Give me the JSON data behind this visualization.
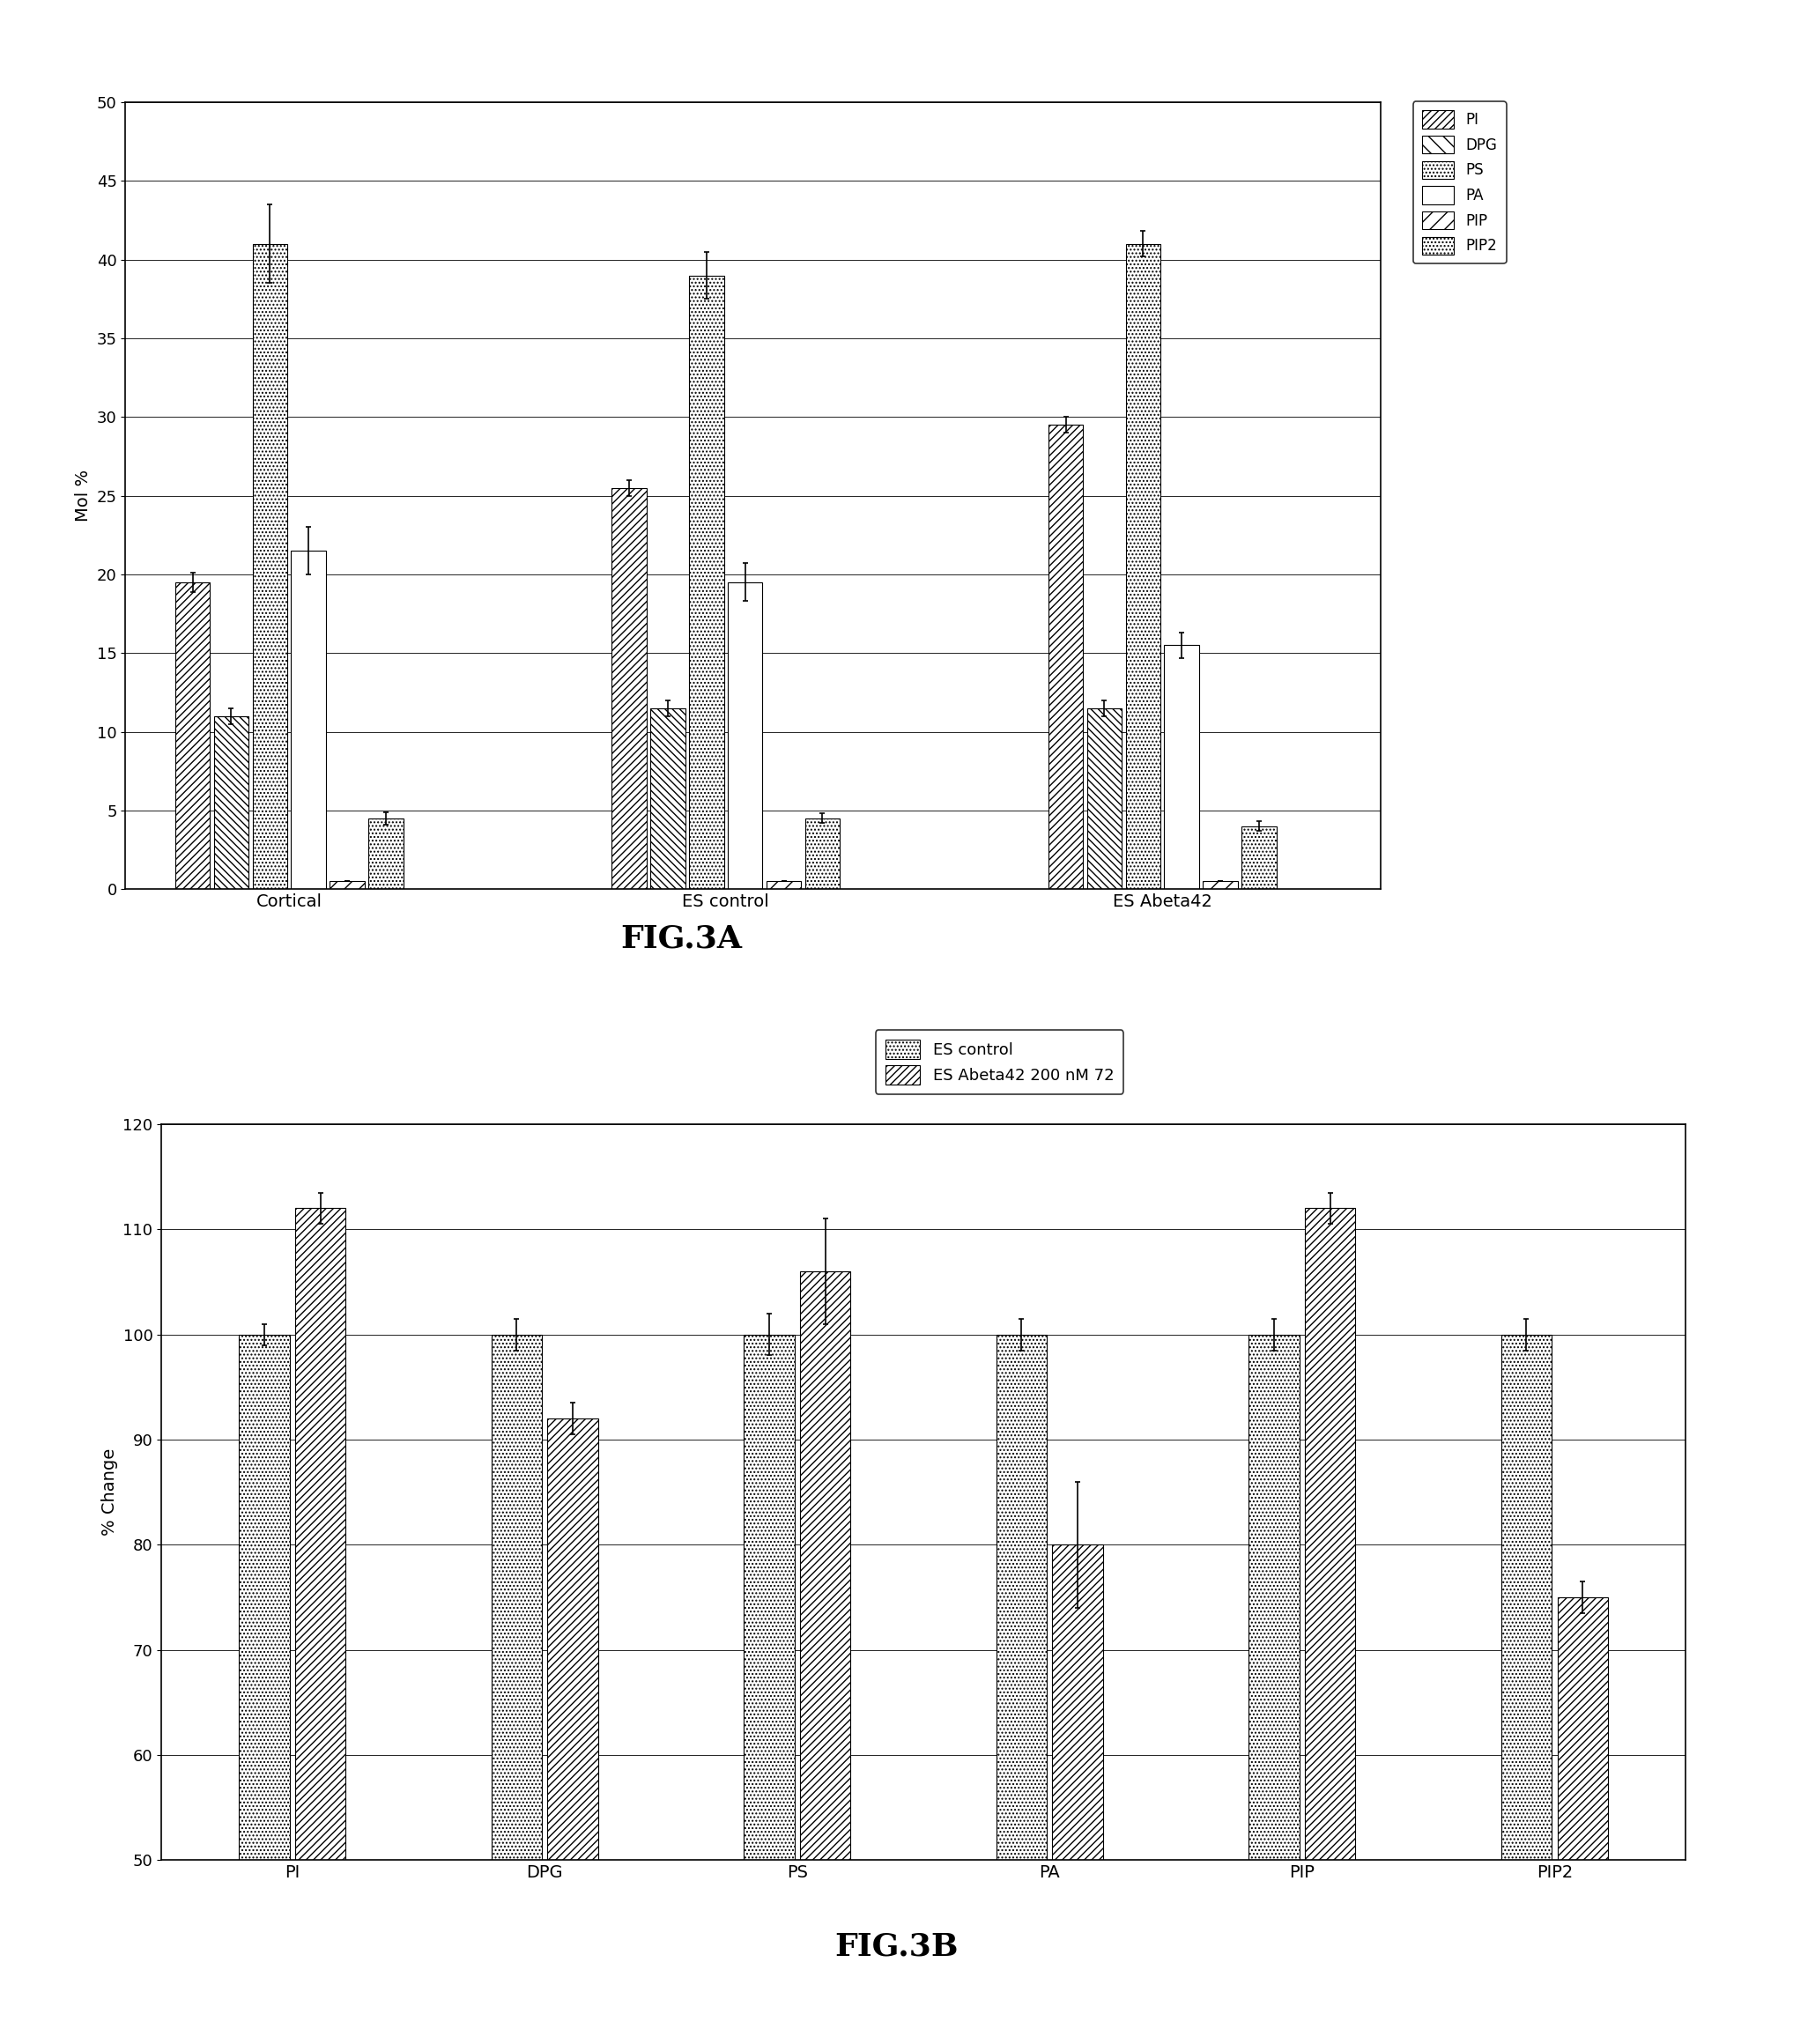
{
  "fig3a": {
    "groups": [
      "Cortical",
      "ES control",
      "ES Abeta42"
    ],
    "lipids": [
      "PI",
      "DPG",
      "PS",
      "PA",
      "PIP",
      "PIP2"
    ],
    "values": [
      [
        19.5,
        11.0,
        41.0,
        21.5,
        0.5,
        4.5
      ],
      [
        25.5,
        11.5,
        39.0,
        19.5,
        0.5,
        4.5
      ],
      [
        29.5,
        11.5,
        41.0,
        15.5,
        0.5,
        4.0
      ]
    ],
    "errors": [
      [
        0.6,
        0.5,
        2.5,
        1.5,
        0.0,
        0.4
      ],
      [
        0.5,
        0.5,
        1.5,
        1.2,
        0.0,
        0.3
      ],
      [
        0.5,
        0.5,
        0.8,
        0.8,
        0.0,
        0.3
      ]
    ],
    "ylabel": "Mol %",
    "ylim": [
      0,
      50
    ],
    "yticks": [
      0,
      5,
      10,
      15,
      20,
      25,
      30,
      35,
      40,
      45,
      50
    ],
    "fig_label": "FIG.3A",
    "hatches": [
      "////",
      "\\\\\\\\",
      "....",
      "",
      "//",
      "...."
    ],
    "legend_labels": [
      "PI",
      "DPG",
      "PS",
      "PA",
      "PIP",
      "PIP2"
    ],
    "legend_hatches": [
      "////",
      "\\\\\\\\",
      "....",
      "",
      "//",
      "...."
    ]
  },
  "fig3b": {
    "categories": [
      "PI",
      "DPG",
      "PS",
      "PA",
      "PIP",
      "PIP2"
    ],
    "series": [
      "ES control",
      "ES Abeta42 200 nM 72"
    ],
    "values": [
      [
        100,
        100,
        100,
        100,
        100,
        100
      ],
      [
        112,
        92,
        106,
        80,
        112,
        75
      ]
    ],
    "errors": [
      [
        1.0,
        1.5,
        2.0,
        1.5,
        1.5,
        1.5
      ],
      [
        1.5,
        1.5,
        5.0,
        6.0,
        1.5,
        1.5
      ]
    ],
    "ylabel": "% Change",
    "ylim": [
      50,
      120
    ],
    "yticks": [
      50,
      60,
      70,
      80,
      90,
      100,
      110,
      120
    ],
    "fig_label": "FIG.3B",
    "hatches": [
      "....",
      "////"
    ],
    "legend_labels": [
      "ES control",
      "ES Abeta42 200 nM 72"
    ]
  },
  "background_color": "#ffffff"
}
